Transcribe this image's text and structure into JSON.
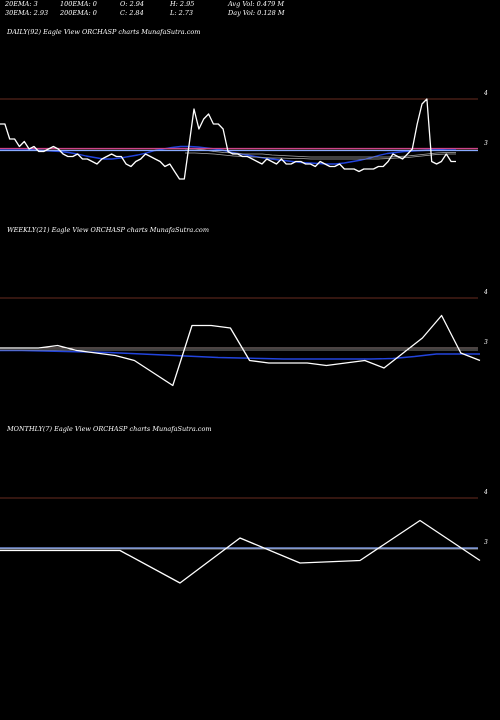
{
  "header": {
    "row1": [
      {
        "key": "ema20",
        "text": "20EMA: 3"
      },
      {
        "key": "ema100",
        "text": "100EMA: 0"
      },
      {
        "key": "open",
        "text": "O: 2.94"
      },
      {
        "key": "high",
        "text": "H: 2.95"
      },
      {
        "key": "avgvol",
        "text": "Avg Vol: 0.479  M"
      }
    ],
    "row2": [
      {
        "key": "ema30",
        "text": "30EMA: 2.93"
      },
      {
        "key": "ema200",
        "text": "200EMA: 0"
      },
      {
        "key": "close",
        "text": "C: 2.84"
      },
      {
        "key": "low",
        "text": "L: 2.73"
      },
      {
        "key": "dayvol",
        "text": "Day Vol: 0.128  M"
      }
    ]
  },
  "colors": {
    "price": "#ffffff",
    "ema_blue": "#2244dd",
    "level_line": "#8b3a2a",
    "ema_gray": "#aaaaaa",
    "pink": "#cc4488",
    "light_blue": "#88aaff"
  },
  "chart_data": [
    {
      "type": "line",
      "title": "DAILY(92) Eagle   View  ORCHASP charts MunafaSutra.com",
      "yticks": [
        {
          "label": "4",
          "value": 4
        },
        {
          "label": "3",
          "value": 3
        }
      ],
      "ylim": [
        2.0,
        4.5
      ],
      "series": [
        {
          "role": "price",
          "values": [
            3.5,
            3.5,
            3.2,
            3.2,
            3.05,
            3.15,
            3.0,
            3.05,
            2.95,
            2.95,
            3.0,
            3.05,
            3.0,
            2.9,
            2.85,
            2.85,
            2.9,
            2.8,
            2.8,
            2.75,
            2.7,
            2.8,
            2.85,
            2.9,
            2.85,
            2.85,
            2.7,
            2.65,
            2.75,
            2.8,
            2.9,
            2.85,
            2.8,
            2.75,
            2.65,
            2.7,
            2.55,
            2.4,
            2.4,
            3.1,
            3.8,
            3.4,
            3.6,
            3.7,
            3.5,
            3.5,
            3.4,
            2.95,
            2.9,
            2.9,
            2.85,
            2.85,
            2.8,
            2.75,
            2.7,
            2.8,
            2.75,
            2.7,
            2.8,
            2.7,
            2.7,
            2.75,
            2.75,
            2.7,
            2.7,
            2.65,
            2.75,
            2.7,
            2.65,
            2.65,
            2.7,
            2.6,
            2.6,
            2.6,
            2.55,
            2.6,
            2.6,
            2.6,
            2.65,
            2.65,
            2.75,
            2.9,
            2.85,
            2.8,
            2.9,
            3.0,
            3.5,
            3.9,
            4.0,
            2.75,
            2.7,
            2.75,
            2.9,
            2.75,
            2.75
          ]
        },
        {
          "role": "ema_blue",
          "values": [
            3.0,
            3.0,
            3.0,
            3.0,
            2.98,
            2.97,
            2.96,
            2.95,
            2.93,
            2.9,
            2.86,
            2.83,
            2.8,
            2.8,
            2.82,
            2.85,
            2.88,
            2.92,
            2.97,
            3.0,
            3.03,
            3.05,
            3.05,
            3.04,
            3.02,
            3.0,
            2.97,
            2.93,
            2.9,
            2.87,
            2.84,
            2.81,
            2.79,
            2.77,
            2.75,
            2.73,
            2.72,
            2.71,
            2.7,
            2.7,
            2.72,
            2.75,
            2.78,
            2.82,
            2.87,
            2.91,
            2.93,
            2.95,
            2.96,
            2.97,
            2.98,
            2.99,
            3.0,
            3.0
          ]
        },
        {
          "role": "ema_gray1",
          "values": [
            3.0,
            3.0,
            2.98,
            2.95,
            2.93,
            2.92,
            2.9,
            2.9,
            2.9,
            2.88,
            2.87,
            2.86,
            2.85,
            2.84,
            2.84,
            2.84,
            2.84,
            2.84,
            2.84,
            2.84,
            2.84,
            2.84,
            2.85,
            2.86,
            2.88,
            2.9,
            2.92,
            2.93,
            2.93
          ]
        },
        {
          "role": "ema_gray2",
          "values": [
            2.92,
            2.92,
            2.91,
            2.9,
            2.88,
            2.86,
            2.85,
            2.84,
            2.83,
            2.82,
            2.82,
            2.81,
            2.81,
            2.8,
            2.8,
            2.8,
            2.8,
            2.8,
            2.8,
            2.8,
            2.8,
            2.81,
            2.82,
            2.83,
            2.85,
            2.87,
            2.89,
            2.9,
            2.9
          ]
        },
        {
          "role": "pink",
          "values": [
            3.01,
            3.01
          ]
        },
        {
          "role": "light_blue",
          "values": [
            2.97,
            2.97
          ]
        }
      ]
    },
    {
      "type": "line",
      "title": "WEEKLY(21) Eagle   View  ORCHASP charts MunafaSutra.com",
      "yticks": [
        {
          "label": "4",
          "value": 4
        },
        {
          "label": "3",
          "value": 3
        }
      ],
      "ylim": [
        2.0,
        4.5
      ],
      "series": [
        {
          "role": "price",
          "values": [
            3.0,
            3.0,
            3.0,
            3.05,
            2.95,
            2.9,
            2.85,
            2.75,
            2.5,
            2.25,
            3.45,
            3.45,
            3.4,
            2.75,
            2.7,
            2.7,
            2.7,
            2.65,
            2.7,
            2.75,
            2.6,
            2.9,
            3.2,
            3.65,
            2.9,
            2.75
          ]
        },
        {
          "role": "ema_blue",
          "values": [
            2.95,
            2.95,
            2.94,
            2.93,
            2.92,
            2.91,
            2.89,
            2.87,
            2.85,
            2.83,
            2.81,
            2.8,
            2.79,
            2.78,
            2.78,
            2.78,
            2.78,
            2.78,
            2.79,
            2.83,
            2.88,
            2.88,
            2.88
          ]
        },
        {
          "role": "ema_gray1",
          "values": [
            3.0,
            3.0
          ]
        },
        {
          "role": "ema_gray2",
          "values": [
            2.96,
            2.96
          ]
        }
      ]
    },
    {
      "type": "line",
      "title": "MONTHLY(7) Eagle   View  ORCHASP charts MunafaSutra.com",
      "yticks": [
        {
          "label": "4",
          "value": 4
        },
        {
          "label": "3",
          "value": 3
        }
      ],
      "ylim": [
        2.0,
        4.5
      ],
      "series": [
        {
          "role": "price",
          "values": [
            2.95,
            2.95,
            2.95,
            2.3,
            3.2,
            2.7,
            2.75,
            3.55,
            2.75
          ]
        },
        {
          "role": "light_blue",
          "values": [
            3.0,
            3.0
          ]
        },
        {
          "role": "ema_gray1",
          "values": [
            2.98,
            2.98
          ]
        }
      ]
    }
  ]
}
